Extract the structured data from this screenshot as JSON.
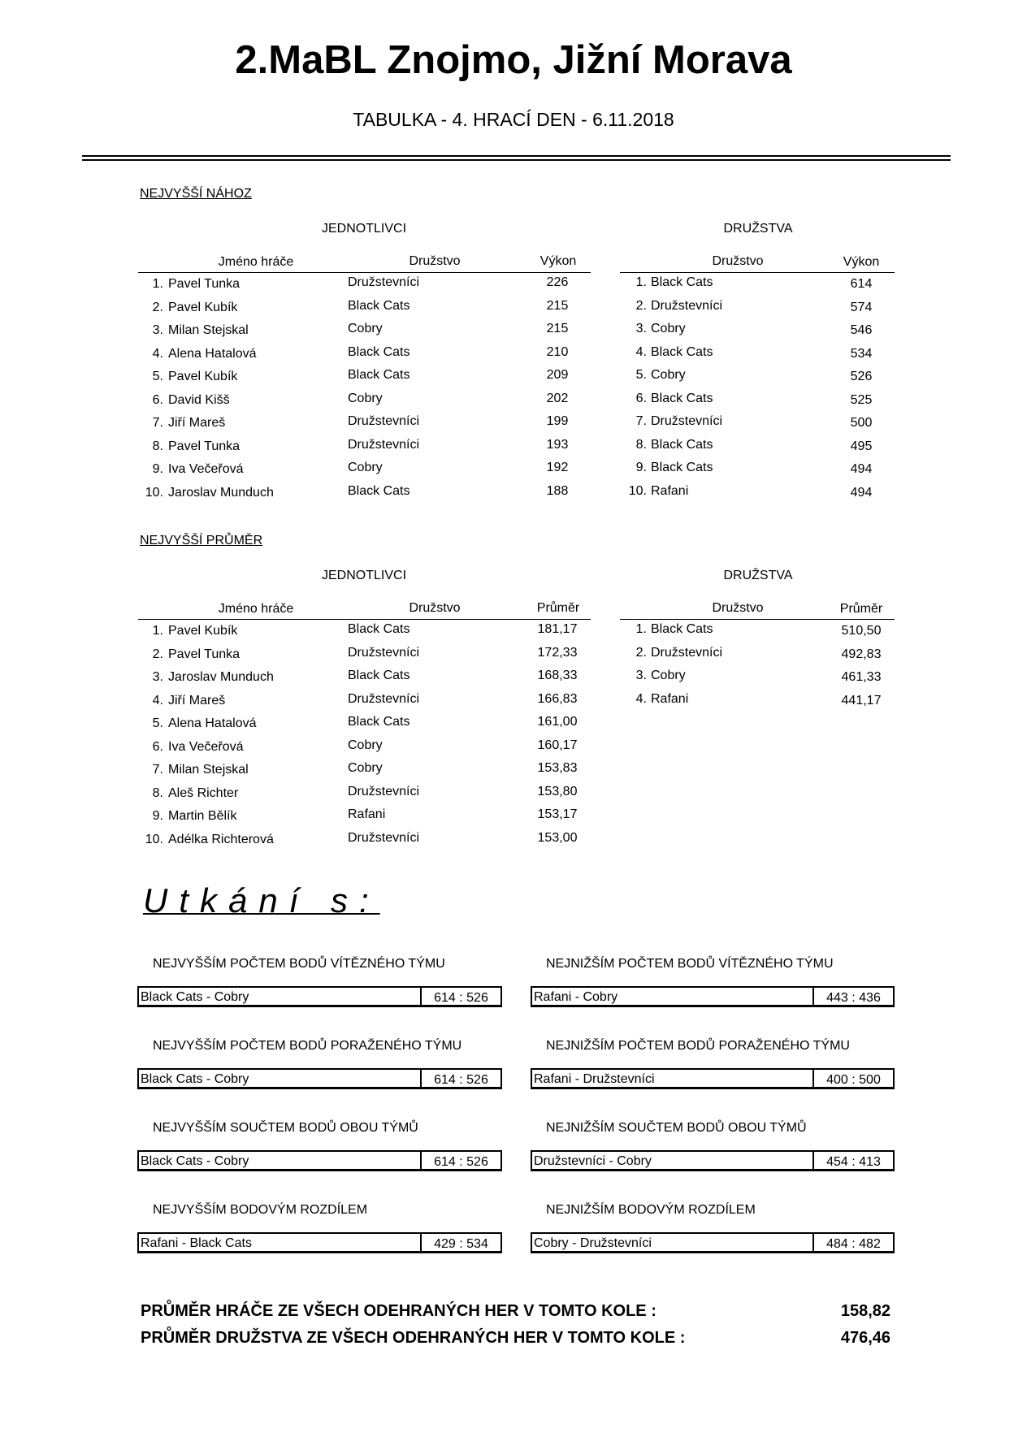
{
  "header": {
    "title": "2.MaBL Znojmo, Jižní Morava",
    "subtitle": "TABULKA - 4. HRACÍ DEN - 6.11.2018"
  },
  "highest_throw": {
    "section_label": "NEJVYŠŠÍ NÁHOZ",
    "individuals": {
      "heading": "JEDNOTLIVCI",
      "columns": [
        "Jméno hráče",
        "Družstvo",
        "Výkon"
      ],
      "rows": [
        [
          "1.",
          "Pavel Tunka",
          "Družstevníci",
          "226"
        ],
        [
          "2.",
          "Pavel Kubík",
          "Black Cats",
          "215"
        ],
        [
          "3.",
          "Milan Stejskal",
          "Cobry",
          "215"
        ],
        [
          "4.",
          "Alena Hatalová",
          "Black Cats",
          "210"
        ],
        [
          "5.",
          "Pavel Kubík",
          "Black Cats",
          "209"
        ],
        [
          "6.",
          "David Kišš",
          "Cobry",
          "202"
        ],
        [
          "7.",
          "Jiří Mareš",
          "Družstevníci",
          "199"
        ],
        [
          "8.",
          "Pavel Tunka",
          "Družstevníci",
          "193"
        ],
        [
          "9.",
          "Iva Večeřová",
          "Cobry",
          "192"
        ],
        [
          "10.",
          "Jaroslav Munduch",
          "Black Cats",
          "188"
        ]
      ]
    },
    "teams": {
      "heading": "DRUŽSTVA",
      "columns": [
        "Družstvo",
        "Výkon"
      ],
      "rows": [
        [
          "1.",
          "Black Cats",
          "614"
        ],
        [
          "2.",
          "Družstevníci",
          "574"
        ],
        [
          "3.",
          "Cobry",
          "546"
        ],
        [
          "4.",
          "Black Cats",
          "534"
        ],
        [
          "5.",
          "Cobry",
          "526"
        ],
        [
          "6.",
          "Black Cats",
          "525"
        ],
        [
          "7.",
          "Družstevníci",
          "500"
        ],
        [
          "8.",
          "Black Cats",
          "495"
        ],
        [
          "9.",
          "Black Cats",
          "494"
        ],
        [
          "10.",
          "Rafani",
          "494"
        ]
      ]
    }
  },
  "highest_average": {
    "section_label": "NEJVYŠŠÍ PRŮMĚR",
    "individuals": {
      "heading": "JEDNOTLIVCI",
      "columns": [
        "Jméno hráče",
        "Družstvo",
        "Průměr"
      ],
      "rows": [
        [
          "1.",
          "Pavel Kubík",
          "Black Cats",
          "181,17"
        ],
        [
          "2.",
          "Pavel Tunka",
          "Družstevníci",
          "172,33"
        ],
        [
          "3.",
          "Jaroslav Munduch",
          "Black Cats",
          "168,33"
        ],
        [
          "4.",
          "Jiří Mareš",
          "Družstevníci",
          "166,83"
        ],
        [
          "5.",
          "Alena Hatalová",
          "Black Cats",
          "161,00"
        ],
        [
          "6.",
          "Iva Večeřová",
          "Cobry",
          "160,17"
        ],
        [
          "7.",
          "Milan Stejskal",
          "Cobry",
          "153,83"
        ],
        [
          "8.",
          "Aleš Richter",
          "Družstevníci",
          "153,80"
        ],
        [
          "9.",
          "Martin Bělík",
          "Rafani",
          "153,17"
        ],
        [
          "10.",
          "Adélka Richterová",
          "Družstevníci",
          "153,00"
        ]
      ]
    },
    "teams": {
      "heading": "DRUŽSTVA",
      "columns": [
        "Družstvo",
        "Průměr"
      ],
      "rows": [
        [
          "1.",
          "Black Cats",
          "510,50"
        ],
        [
          "2.",
          "Družstevníci",
          "492,83"
        ],
        [
          "3.",
          "Cobry",
          "461,33"
        ],
        [
          "4.",
          "Rafani",
          "441,17"
        ]
      ]
    }
  },
  "matches": {
    "heading": "Utkání s:",
    "left": [
      {
        "label": "NEJVYŠŠÍM POČTEM BODŮ VÍTĚZNÉHO TÝMU",
        "match": "Black Cats - Cobry",
        "score": "614 : 526"
      },
      {
        "label": "NEJVYŠŠÍM POČTEM BODŮ PORAŽENÉHO TÝMU",
        "match": "Black Cats - Cobry",
        "score": "614 : 526"
      },
      {
        "label": "NEJVYŠŠÍM SOUČTEM BODŮ OBOU TÝMŮ",
        "match": "Black Cats - Cobry",
        "score": "614 : 526"
      },
      {
        "label": "NEJVYŠŠÍM BODOVÝM ROZDÍLEM",
        "match": "Rafani - Black Cats",
        "score": "429 : 534"
      }
    ],
    "right": [
      {
        "label": "NEJNIŽŠÍM POČTEM BODŮ VÍTĚZNÉHO TÝMU",
        "match": "Rafani - Cobry",
        "score": "443 : 436"
      },
      {
        "label": "NEJNIŽŠÍM POČTEM BODŮ PORAŽENÉHO TÝMU",
        "match": "Rafani - Družstevníci",
        "score": "400 : 500"
      },
      {
        "label": "NEJNIŽŠÍM SOUČTEM BODŮ OBOU TÝMŮ",
        "match": "Družstevníci - Cobry",
        "score": "454 : 413"
      },
      {
        "label": "NEJNIŽŠÍM BODOVÝM ROZDÍLEM",
        "match": "Cobry - Družstevníci",
        "score": "484 : 482"
      }
    ]
  },
  "summary": {
    "player_avg_label": "PRŮMĚR HRÁČE ZE VŠECH ODEHRANÝCH HER V TOMTO KOLE :",
    "player_avg_value": "158,82",
    "team_avg_label": "PRŮMĚR DRUŽSTVA ZE VŠECH ODEHRANÝCH HER V TOMTO KOLE :",
    "team_avg_value": "476,46"
  }
}
